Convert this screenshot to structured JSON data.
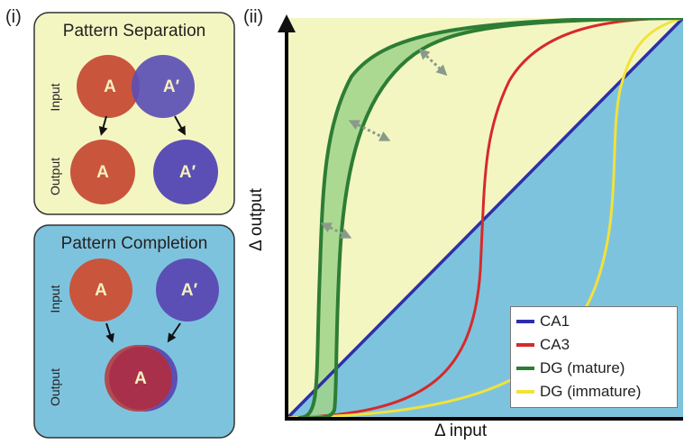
{
  "panels": {
    "i_label": "(i)",
    "ii_label": "(ii)"
  },
  "separation": {
    "title": "Pattern Separation",
    "input_label": "Input",
    "output_label": "Output",
    "circle_a": "A",
    "circle_a_prime": "A′"
  },
  "completion": {
    "title": "Pattern Completion",
    "input_label": "Input",
    "output_label": "Output",
    "circle_a": "A",
    "circle_a_prime": "A′",
    "merged_label": "A"
  },
  "colors": {
    "separation_bg": "#f4f6c2",
    "completion_bg": "#7ec3de",
    "circle_a": "#c9553d",
    "circle_a_prime": "#5b4fb5",
    "ca1": "#2e2fa8",
    "ca3": "#d62a2a",
    "dg_mature": "#2d7d34",
    "dg_immature": "#f2e23a"
  },
  "chart_data": {
    "type": "line",
    "xlabel": "Δ input",
    "ylabel": "Δ output",
    "series": [
      {
        "name": "CA1"
      },
      {
        "name": "CA3"
      },
      {
        "name": "DG (mature)"
      },
      {
        "name": "DG (immature)"
      }
    ]
  }
}
